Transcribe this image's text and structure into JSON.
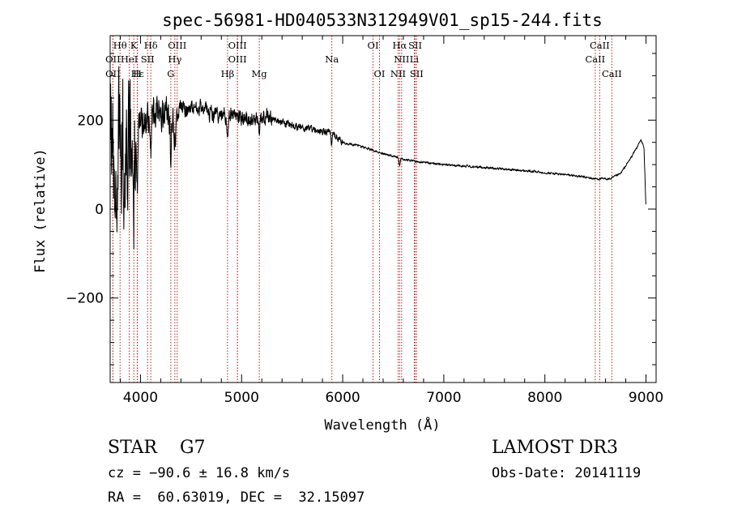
{
  "chart_data": {
    "type": "line",
    "title": "spec-56981-HD040533N312949V01_sp15-244.fits",
    "xlabel": "Wavelength (Å)",
    "ylabel": "Flux (relative)",
    "xlim": [
      3700,
      9100
    ],
    "ylim": [
      -390,
      390
    ],
    "xticks": [
      4000,
      5000,
      6000,
      7000,
      8000,
      9000
    ],
    "xtick_labels": [
      "4000",
      "5000",
      "6000",
      "7000",
      "8000",
      "9000"
    ],
    "yticks": [
      -200,
      0,
      200
    ],
    "ytick_labels": [
      "−200",
      "0",
      "200"
    ],
    "grid": false,
    "spectrum_nodes": [
      [
        3700,
        150
      ],
      [
        3750,
        120
      ],
      [
        3800,
        140
      ],
      [
        3850,
        150
      ],
      [
        3900,
        160
      ],
      [
        3950,
        180
      ],
      [
        4000,
        195
      ],
      [
        4050,
        205
      ],
      [
        4100,
        215
      ],
      [
        4150,
        215
      ],
      [
        4200,
        210
      ],
      [
        4250,
        205
      ],
      [
        4300,
        210
      ],
      [
        4400,
        225
      ],
      [
        4500,
        230
      ],
      [
        4600,
        225
      ],
      [
        4700,
        215
      ],
      [
        4800,
        210
      ],
      [
        4900,
        212
      ],
      [
        5000,
        205
      ],
      [
        5100,
        200
      ],
      [
        5200,
        210
      ],
      [
        5400,
        195
      ],
      [
        5600,
        182
      ],
      [
        5800,
        175
      ],
      [
        5900,
        170
      ],
      [
        6000,
        150
      ],
      [
        6200,
        140
      ],
      [
        6400,
        125
      ],
      [
        6600,
        112
      ],
      [
        6800,
        105
      ],
      [
        7000,
        100
      ],
      [
        7500,
        92
      ],
      [
        8000,
        82
      ],
      [
        8300,
        75
      ],
      [
        8500,
        68
      ],
      [
        8650,
        68
      ],
      [
        8750,
        80
      ],
      [
        8850,
        115
      ],
      [
        8950,
        155
      ],
      [
        8980,
        140
      ],
      [
        9000,
        0
      ]
    ],
    "noise_bands": [
      {
        "from": 3700,
        "to": 3950,
        "amplitude": 240
      },
      {
        "from": 3950,
        "to": 4350,
        "amplitude": 60
      },
      {
        "from": 4350,
        "to": 5300,
        "amplitude": 28
      },
      {
        "from": 5300,
        "to": 6000,
        "amplitude": 13
      },
      {
        "from": 6000,
        "to": 9000,
        "amplitude": 4
      }
    ],
    "absorption_dips": [
      {
        "wavelength": 3934,
        "depth": 170
      },
      {
        "wavelength": 3968,
        "depth": 150
      },
      {
        "wavelength": 4102,
        "depth": 70
      },
      {
        "wavelength": 4300,
        "depth": 80
      },
      {
        "wavelength": 4340,
        "depth": 70
      },
      {
        "wavelength": 4861,
        "depth": 55
      },
      {
        "wavelength": 5175,
        "depth": 30
      },
      {
        "wavelength": 5893,
        "depth": 25
      },
      {
        "wavelength": 6563,
        "depth": 18
      }
    ],
    "line_markers": [
      {
        "label": "Hθ",
        "wavelength": 3798,
        "row": 0
      },
      {
        "label": "K",
        "wavelength": 3934,
        "row": 0
      },
      {
        "label": "Hδ",
        "wavelength": 4102,
        "row": 0
      },
      {
        "label": "OIII",
        "wavelength": 4363,
        "row": 0
      },
      {
        "label": "OIII",
        "wavelength": 4959,
        "row": 0
      },
      {
        "label": "OI",
        "wavelength": 6300,
        "row": 0
      },
      {
        "label": "Hα",
        "wavelength": 6563,
        "row": 0
      },
      {
        "label": "SII",
        "wavelength": 6717,
        "row": 0
      },
      {
        "label": "CaII",
        "wavelength": 8542,
        "row": 0
      },
      {
        "label": "OII",
        "wavelength": 3727,
        "row": 1
      },
      {
        "label": "HeI",
        "wavelength": 3889,
        "row": 1
      },
      {
        "label": "SII",
        "wavelength": 4070,
        "row": 1
      },
      {
        "label": "Hγ",
        "wavelength": 4340,
        "row": 1
      },
      {
        "label": "OIII",
        "wavelength": 4959,
        "row": 1
      },
      {
        "label": "Na",
        "wavelength": 5893,
        "row": 1
      },
      {
        "label": "NII",
        "wavelength": 6583,
        "row": 1
      },
      {
        "label": "Li",
        "wavelength": 6708,
        "row": 1
      },
      {
        "label": "CaII",
        "wavelength": 8498,
        "row": 1
      },
      {
        "label": "OII",
        "wavelength": 3727,
        "row": 2
      },
      {
        "label": "Hε",
        "wavelength": 3970,
        "row": 2
      },
      {
        "label": "H",
        "wavelength": 3968,
        "row": 2
      },
      {
        "label": "G",
        "wavelength": 4300,
        "row": 2
      },
      {
        "label": "Hβ",
        "wavelength": 4861,
        "row": 2
      },
      {
        "label": "Mg",
        "wavelength": 5175,
        "row": 2
      },
      {
        "label": "OI",
        "wavelength": 6364,
        "row": 2
      },
      {
        "label": "NII",
        "wavelength": 6548,
        "row": 2
      },
      {
        "label": "SII",
        "wavelength": 6731,
        "row": 2
      },
      {
        "label": "CaII",
        "wavelength": 8662,
        "row": 2
      }
    ],
    "marker_color": "#b22222",
    "line_color": "#000000"
  },
  "info": {
    "object_class": "STAR    G7",
    "survey": "LAMOST DR3",
    "redshift": "cz = −90.6 ± 16.8 km/s",
    "obs_date": "Obs-Date: 20141119",
    "coordinates": "RA =  60.63019, DEC =  32.15097"
  }
}
